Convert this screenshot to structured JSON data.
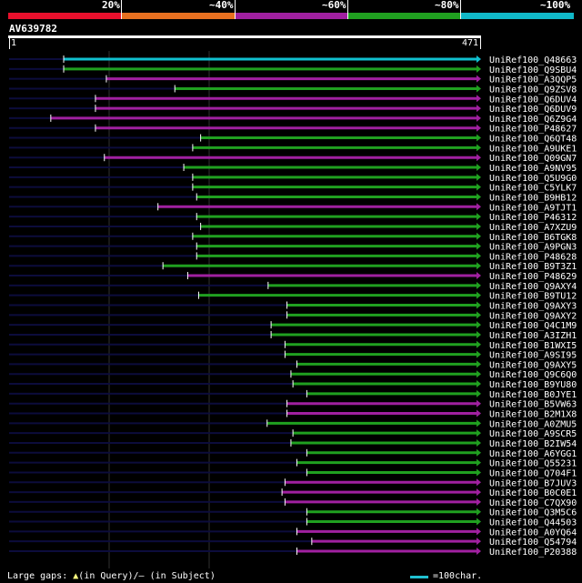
{
  "legend": {
    "labels": [
      "20%",
      "~40%",
      "~60%",
      "~80%",
      "~100%"
    ],
    "colors": [
      "#e8102c",
      "#e87020",
      "#a020a0",
      "#20a020",
      "#10b8c8"
    ]
  },
  "query": {
    "name": "AV639782",
    "start": "1",
    "end": "471",
    "length": 471
  },
  "colors": {
    "cyan": "#10c0d0",
    "green": "#20a020",
    "purple": "#a020a0",
    "dark": "#0c0c3c"
  },
  "chart_data": {
    "type": "alignment",
    "query_length": 471,
    "hits": [
      {
        "name": "UniRef100_Q48663",
        "color": "cyan",
        "start": 55,
        "end": 471
      },
      {
        "name": "UniRef100_Q9SBU4",
        "color": "green",
        "start": 55,
        "end": 471
      },
      {
        "name": "UniRef100_A3QQP5",
        "color": "purple",
        "start": 98,
        "end": 471
      },
      {
        "name": "UniRef100_Q9ZSV8",
        "color": "green",
        "start": 167,
        "end": 471
      },
      {
        "name": "UniRef100_Q6DUV4",
        "color": "purple",
        "start": 87,
        "end": 471
      },
      {
        "name": "UniRef100_Q6DUV9",
        "color": "purple",
        "start": 87,
        "end": 471
      },
      {
        "name": "UniRef100_Q6Z9G4",
        "color": "purple",
        "start": 42,
        "end": 471
      },
      {
        "name": "UniRef100_P48627",
        "color": "purple",
        "start": 87,
        "end": 471
      },
      {
        "name": "UniRef100_Q6QT48",
        "color": "green",
        "start": 193,
        "end": 471
      },
      {
        "name": "UniRef100_A9UKE1",
        "color": "green",
        "start": 185,
        "end": 471
      },
      {
        "name": "UniRef100_Q09GN7",
        "color": "purple",
        "start": 96,
        "end": 471
      },
      {
        "name": "UniRef100_A9NV95",
        "color": "green",
        "start": 176,
        "end": 471
      },
      {
        "name": "UniRef100_Q5U9G0",
        "color": "green",
        "start": 185,
        "end": 471
      },
      {
        "name": "UniRef100_C5YLK7",
        "color": "green",
        "start": 185,
        "end": 471
      },
      {
        "name": "UniRef100_B9HB12",
        "color": "green",
        "start": 189,
        "end": 471
      },
      {
        "name": "UniRef100_A9TJT1",
        "color": "purple",
        "start": 150,
        "end": 471
      },
      {
        "name": "UniRef100_P46312",
        "color": "green",
        "start": 189,
        "end": 471
      },
      {
        "name": "UniRef100_A7XZU9",
        "color": "green",
        "start": 193,
        "end": 471
      },
      {
        "name": "UniRef100_B6TGK8",
        "color": "green",
        "start": 185,
        "end": 471
      },
      {
        "name": "UniRef100_A9PGN3",
        "color": "green",
        "start": 189,
        "end": 471
      },
      {
        "name": "UniRef100_P48628",
        "color": "green",
        "start": 189,
        "end": 471
      },
      {
        "name": "UniRef100_B9T3Z1",
        "color": "green",
        "start": 155,
        "end": 471
      },
      {
        "name": "UniRef100_P48629",
        "color": "purple",
        "start": 180,
        "end": 471
      },
      {
        "name": "UniRef100_Q9AXY4",
        "color": "green",
        "start": 261,
        "end": 471
      },
      {
        "name": "UniRef100_B9TU12",
        "color": "green",
        "start": 191,
        "end": 471
      },
      {
        "name": "UniRef100_Q9AXY3",
        "color": "green",
        "start": 280,
        "end": 471
      },
      {
        "name": "UniRef100_Q9AXY2",
        "color": "green",
        "start": 280,
        "end": 471
      },
      {
        "name": "UniRef100_Q4C1M9",
        "color": "green",
        "start": 264,
        "end": 471
      },
      {
        "name": "UniRef100_A3IZH1",
        "color": "green",
        "start": 264,
        "end": 471
      },
      {
        "name": "UniRef100_B1WXI5",
        "color": "green",
        "start": 278,
        "end": 471
      },
      {
        "name": "UniRef100_A9SI95",
        "color": "green",
        "start": 278,
        "end": 471
      },
      {
        "name": "UniRef100_Q9AXY5",
        "color": "green",
        "start": 290,
        "end": 471
      },
      {
        "name": "UniRef100_Q9C6Q0",
        "color": "green",
        "start": 284,
        "end": 471
      },
      {
        "name": "UniRef100_B9YU80",
        "color": "green",
        "start": 286,
        "end": 471
      },
      {
        "name": "UniRef100_B0JYE1",
        "color": "green",
        "start": 300,
        "end": 471
      },
      {
        "name": "UniRef100_B5VW63",
        "color": "purple",
        "start": 280,
        "end": 471
      },
      {
        "name": "UniRef100_B2M1X8",
        "color": "purple",
        "start": 280,
        "end": 471
      },
      {
        "name": "UniRef100_A0ZMU5",
        "color": "green",
        "start": 260,
        "end": 471
      },
      {
        "name": "UniRef100_A9SCR5",
        "color": "green",
        "start": 286,
        "end": 471
      },
      {
        "name": "UniRef100_B2IW54",
        "color": "green",
        "start": 284,
        "end": 471
      },
      {
        "name": "UniRef100_A6YGG1",
        "color": "green",
        "start": 300,
        "end": 471
      },
      {
        "name": "UniRef100_Q55231",
        "color": "green",
        "start": 290,
        "end": 471
      },
      {
        "name": "UniRef100_Q704F1",
        "color": "green",
        "start": 300,
        "end": 471
      },
      {
        "name": "UniRef100_B7JUV3",
        "color": "purple",
        "start": 278,
        "end": 471
      },
      {
        "name": "UniRef100_B0C0E1",
        "color": "purple",
        "start": 275,
        "end": 471
      },
      {
        "name": "UniRef100_C7QX90",
        "color": "purple",
        "start": 278,
        "end": 471
      },
      {
        "name": "UniRef100_Q3M5C6",
        "color": "green",
        "start": 300,
        "end": 471
      },
      {
        "name": "UniRef100_Q44503",
        "color": "green",
        "start": 300,
        "end": 471
      },
      {
        "name": "UniRef100_A0YQ64",
        "color": "purple",
        "start": 290,
        "end": 471
      },
      {
        "name": "UniRef100_Q54794",
        "color": "purple",
        "start": 305,
        "end": 471
      },
      {
        "name": "UniRef100_P20388",
        "color": "purple",
        "start": 290,
        "end": 471
      }
    ]
  },
  "footer": {
    "large_gaps": "Large gaps:",
    "in_query": "(in Query)/",
    "dash": "—",
    "in_subject": "(in Subject)",
    "scale": "=100char."
  }
}
